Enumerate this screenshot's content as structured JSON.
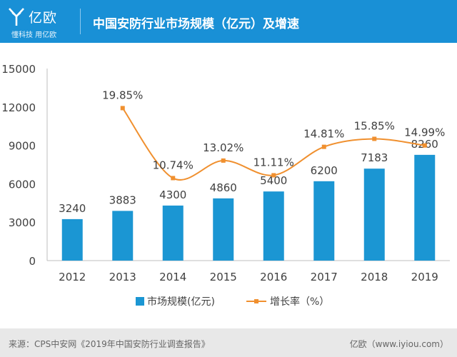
{
  "header": {
    "logo_name": "亿欧",
    "logo_slogan": "懂科技 用亿欧",
    "title": "中国安防行业市场规模（亿元）及增速"
  },
  "footer": {
    "source": "来源：CPS中安网《2019年中国安防行业调查报告》",
    "credit": "亿欧（www.iyiou.com）"
  },
  "colors": {
    "header_bg": "#1990d6",
    "bar": "#1b96d3",
    "line": "#f0902f",
    "footer_bg": "#e8e8e8"
  },
  "chart_data": {
    "type": "bar",
    "categories": [
      "2012",
      "2013",
      "2014",
      "2015",
      "2016",
      "2017",
      "2018",
      "2019"
    ],
    "series": [
      {
        "name": "市场规模(亿元)",
        "type": "bar",
        "values": [
          3240,
          3883,
          4300,
          4860,
          5400,
          6200,
          7183,
          8260
        ],
        "labels": [
          "3240",
          "3883",
          "4300",
          "4860",
          "5400",
          "6200",
          "7183",
          "8260"
        ]
      },
      {
        "name": "增长率（%）",
        "type": "line",
        "values": [
          null,
          19.85,
          10.74,
          13.02,
          11.11,
          14.81,
          15.85,
          14.99
        ],
        "labels": [
          "",
          "19.85%",
          "10.74%",
          "13.02%",
          "11.11%",
          "14.81%",
          "15.85%",
          "14.99%"
        ]
      }
    ],
    "yticks": [
      "0",
      "3000",
      "6000",
      "9000",
      "12000",
      "15000"
    ],
    "ylim": [
      0,
      15000
    ],
    "line_ylim": [
      0,
      25
    ],
    "legend_position": "bottom",
    "grid": false
  }
}
